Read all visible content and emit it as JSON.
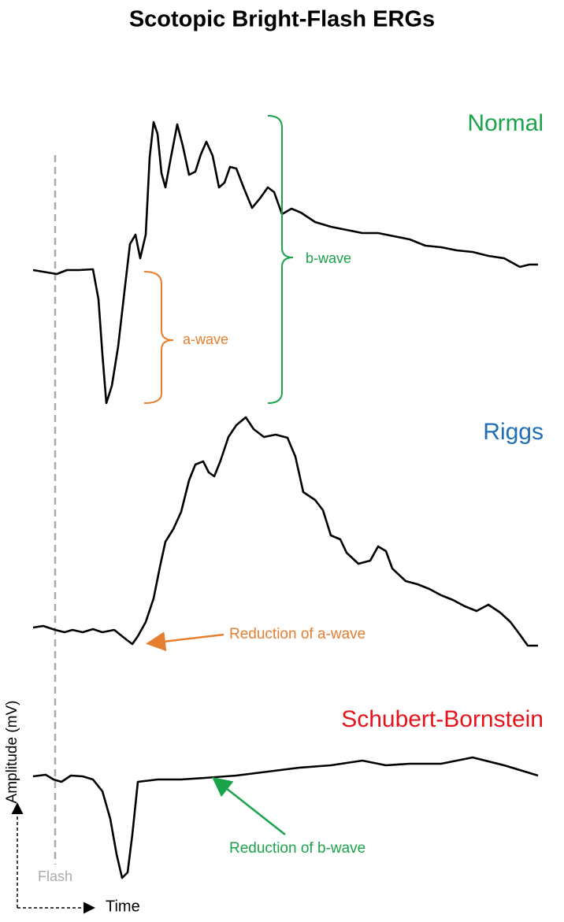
{
  "title": "Scotopic Bright-Flash ERGs",
  "traces": [
    {
      "label": "Normal"
    },
    {
      "label": "Riggs"
    },
    {
      "label": "Schubert-Bornstein"
    }
  ],
  "annotations": {
    "a_wave": "a-wave",
    "b_wave": "b-wave",
    "reduction_a": "Reduction of a-wave",
    "reduction_b": "Reduction of b-wave",
    "flash": "Flash"
  },
  "axes": {
    "y_label": "Amplitude (mV)",
    "x_label": "Time"
  }
}
